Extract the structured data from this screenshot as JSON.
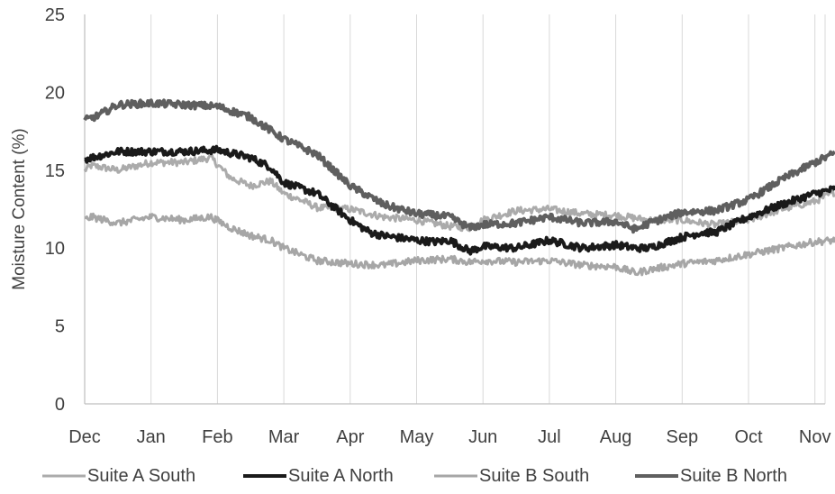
{
  "chart_data": {
    "type": "line",
    "title": "",
    "xlabel": "",
    "ylabel": "Moisture Content (%)",
    "ylim": [
      0,
      25
    ],
    "yticks": [
      0,
      5,
      10,
      15,
      20,
      25
    ],
    "x_months": [
      "Dec",
      "Jan",
      "Feb",
      "Mar",
      "Apr",
      "May",
      "Jun",
      "Jul",
      "Aug",
      "Sep",
      "Oct",
      "Nov"
    ],
    "xlim_months": [
      0,
      11.3
    ],
    "grid": "vertical",
    "legend_position": "bottom",
    "series": [
      {
        "name": "Suite A South",
        "color": "#ababab",
        "line_width": 3,
        "x": [
          0,
          0.1,
          0.5,
          1.0,
          1.5,
          1.9,
          2.2,
          2.5,
          2.8,
          3.0,
          3.3,
          3.5,
          4.0,
          4.5,
          5.0,
          5.5,
          5.8,
          6.0,
          6.5,
          7.0,
          7.5,
          8.0,
          8.5,
          9.0,
          9.3,
          9.5,
          10.0,
          10.5,
          11.0,
          11.3
        ],
        "y": [
          15.0,
          15.3,
          15.0,
          15.5,
          15.5,
          15.8,
          14.5,
          14.0,
          14.3,
          13.5,
          13.0,
          12.6,
          12.5,
          12.0,
          11.8,
          11.4,
          11.3,
          11.8,
          12.4,
          12.5,
          12.2,
          12.1,
          11.8,
          11.8,
          11.6,
          11.5,
          11.8,
          12.5,
          13.0,
          13.6
        ]
      },
      {
        "name": "Suite A North",
        "color": "#1a1a1a",
        "line_width": 4,
        "x": [
          0,
          0.1,
          0.5,
          1.0,
          1.5,
          2.0,
          2.5,
          2.8,
          3.0,
          3.5,
          4.0,
          4.3,
          4.5,
          5.0,
          5.3,
          5.5,
          5.8,
          6.0,
          6.5,
          7.0,
          7.5,
          8.0,
          8.3,
          8.5,
          9.0,
          9.3,
          9.5,
          10.0,
          10.5,
          11.0,
          11.3
        ],
        "y": [
          15.7,
          15.8,
          16.2,
          16.2,
          16.2,
          16.3,
          15.8,
          15.2,
          14.2,
          13.5,
          11.8,
          11.0,
          10.8,
          10.5,
          10.4,
          10.5,
          9.8,
          10.1,
          10.0,
          10.5,
          10.0,
          10.2,
          10.0,
          10.0,
          10.7,
          11.0,
          11.0,
          12.0,
          12.8,
          13.5,
          13.8
        ]
      },
      {
        "name": "Suite B South",
        "color": "#a6a6a6",
        "line_width": 3,
        "x": [
          0,
          0.1,
          0.5,
          1.0,
          1.5,
          1.9,
          2.2,
          2.5,
          2.8,
          3.0,
          3.3,
          3.5,
          4.0,
          4.5,
          5.0,
          5.5,
          5.8,
          6.0,
          6.5,
          7.0,
          7.5,
          8.0,
          8.3,
          8.5,
          9.0,
          9.5,
          10.0,
          10.5,
          11.0,
          11.3
        ],
        "y": [
          11.8,
          12.0,
          11.6,
          12.0,
          11.8,
          12.0,
          11.3,
          10.8,
          10.5,
          10.0,
          9.5,
          9.2,
          9.0,
          8.9,
          9.2,
          9.3,
          9.1,
          9.2,
          9.1,
          9.2,
          8.9,
          8.8,
          8.4,
          8.6,
          9.0,
          9.2,
          9.6,
          10.0,
          10.4,
          10.5
        ]
      },
      {
        "name": "Suite B North",
        "color": "#5f5f5f",
        "line_width": 4,
        "x": [
          0,
          0.2,
          0.5,
          1.0,
          1.5,
          2.0,
          2.5,
          3.0,
          3.5,
          4.0,
          4.5,
          5.0,
          5.3,
          5.5,
          5.8,
          6.0,
          6.5,
          7.0,
          7.5,
          8.0,
          8.3,
          8.5,
          9.0,
          9.5,
          10.0,
          10.5,
          11.0,
          11.3
        ],
        "y": [
          18.2,
          18.5,
          19.2,
          19.3,
          19.2,
          19.1,
          18.4,
          17.0,
          16.0,
          14.0,
          12.8,
          12.2,
          12.1,
          12.0,
          11.3,
          11.5,
          11.6,
          12.0,
          11.6,
          11.7,
          11.2,
          11.6,
          12.3,
          12.4,
          13.1,
          14.4,
          15.5,
          16.1
        ]
      }
    ]
  }
}
